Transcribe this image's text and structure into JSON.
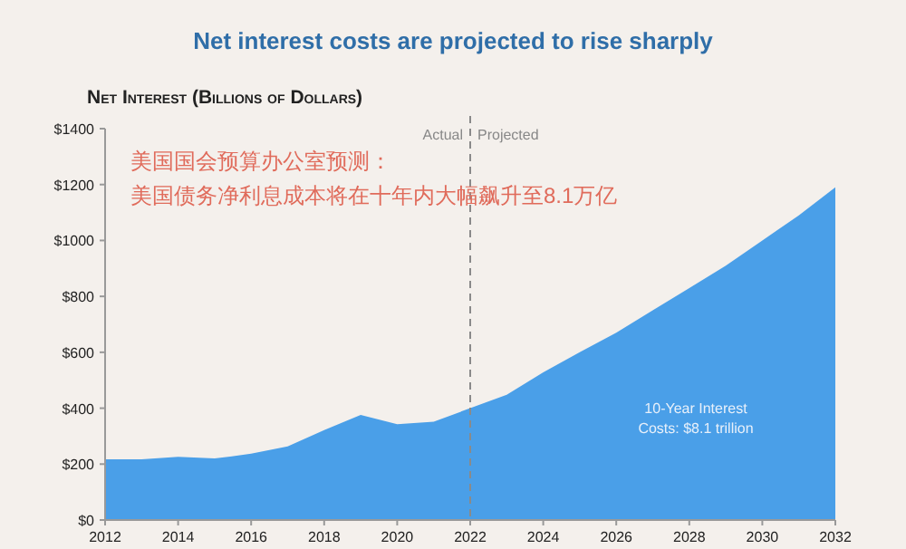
{
  "chart_data": {
    "type": "area",
    "title": "Net interest costs are projected to rise sharply",
    "ylabel": "Net Interest (Billions of Dollars)",
    "x": [
      2012,
      2013,
      2014,
      2015,
      2016,
      2017,
      2018,
      2019,
      2020,
      2021,
      2022,
      2023,
      2024,
      2025,
      2026,
      2027,
      2028,
      2029,
      2030,
      2031,
      2032
    ],
    "series": [
      {
        "color": "#4a9fe8",
        "values": [
          217,
          217,
          226,
          220,
          237,
          263,
          322,
          376,
          343,
          352,
          400,
          448,
          528,
          600,
          670,
          750,
          830,
          910,
          1000,
          1090,
          1190
        ]
      }
    ],
    "xlim": [
      2012,
      2032
    ],
    "xticks": [
      2012,
      2014,
      2016,
      2018,
      2020,
      2022,
      2024,
      2026,
      2028,
      2030,
      2032
    ],
    "ylim": [
      0,
      1400
    ],
    "yticks": [
      {
        "value": 0,
        "label": "$0"
      },
      {
        "value": 200,
        "label": "$200"
      },
      {
        "value": 400,
        "label": "$400"
      },
      {
        "value": 600,
        "label": "$600"
      },
      {
        "value": 800,
        "label": "$800"
      },
      {
        "value": 1000,
        "label": "$1000"
      },
      {
        "value": 1200,
        "label": "$1200"
      },
      {
        "value": 1400,
        "label": "$1400"
      }
    ],
    "grid": false,
    "ref_lines": [
      {
        "axis": "x",
        "value": 2022,
        "label": null,
        "color": "#8a8a8a",
        "line_style": "dashed"
      }
    ],
    "annotations": [
      "Actual",
      "Projected",
      "美国国会预算办公室预测：",
      "美国债务净利息成本将在十年内大幅飙升至8.1万亿",
      "10-Year Interest\nCosts: $8.1 trillion"
    ]
  }
}
